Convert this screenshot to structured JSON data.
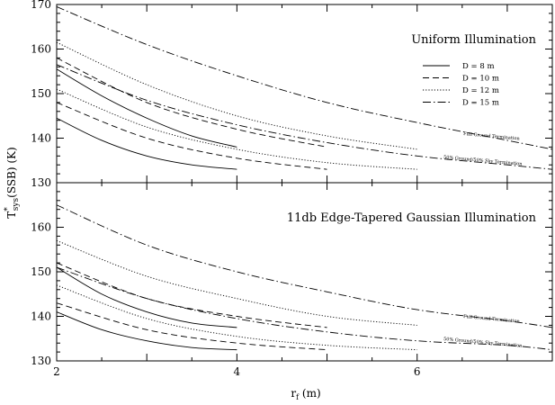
{
  "figure": {
    "ylabel_main": "T",
    "ylabel_sup": "*",
    "ylabel_sub": "sys",
    "ylabel_tail": "(SSB)  (K)",
    "xlabel_main": "r",
    "xlabel_sub": "f",
    "xlabel_tail": " (m)"
  },
  "chart_data": [
    {
      "type": "line",
      "panel": "top",
      "title": "Uniform Illumination",
      "xlim": [
        2,
        7.5
      ],
      "ylim": [
        130,
        170
      ],
      "xticks": [
        "2",
        "4",
        "6"
      ],
      "yticks": [
        "130",
        "140",
        "150",
        "160",
        "170"
      ],
      "legend": {
        "placement": "upper-right",
        "entries": [
          "D = 8 m",
          "D = 10 m",
          "D = 12 m",
          "D = 15 m"
        ]
      },
      "annotations": [
        "Full Ground Termination",
        "50% Ground/50% Sky Termination"
      ],
      "series": [
        {
          "name": "D = 8 m",
          "style": "solid",
          "termination": "full-ground",
          "x": [
            2.0,
            2.5,
            3.0,
            3.5,
            4.0
          ],
          "y": [
            155.5,
            149.5,
            144.5,
            140.5,
            138.0
          ]
        },
        {
          "name": "D = 8 m",
          "style": "solid",
          "termination": "50-50",
          "x": [
            2.0,
            2.5,
            3.0,
            3.5,
            4.0
          ],
          "y": [
            144.5,
            139.5,
            136.0,
            134.0,
            133.0
          ]
        },
        {
          "name": "D = 10 m",
          "style": "dashed",
          "termination": "full-ground",
          "x": [
            2.0,
            3.0,
            4.0,
            5.0
          ],
          "y": [
            158.0,
            148.0,
            142.0,
            138.0
          ]
        },
        {
          "name": "D = 10 m",
          "style": "dashed",
          "termination": "50-50",
          "x": [
            2.0,
            3.0,
            4.0,
            5.0
          ],
          "y": [
            148.0,
            140.0,
            135.5,
            133.0
          ]
        },
        {
          "name": "D = 12 m",
          "style": "dotted",
          "termination": "full-ground",
          "x": [
            2.0,
            3.0,
            4.0,
            5.0,
            6.0
          ],
          "y": [
            161.5,
            152.0,
            145.0,
            140.5,
            137.5
          ]
        },
        {
          "name": "D = 12 m",
          "style": "dotted",
          "termination": "50-50",
          "x": [
            2.0,
            3.0,
            4.0,
            5.0,
            6.0
          ],
          "y": [
            151.0,
            142.5,
            137.5,
            134.5,
            133.0
          ]
        },
        {
          "name": "D = 15 m",
          "style": "dashdot",
          "termination": "full-ground",
          "x": [
            2.0,
            3.0,
            4.0,
            5.0,
            6.0,
            7.0,
            7.5
          ],
          "y": [
            169.5,
            161.0,
            154.0,
            148.0,
            143.5,
            139.5,
            137.5
          ]
        },
        {
          "name": "D = 15 m",
          "style": "dashdot",
          "termination": "50-50",
          "x": [
            2.0,
            3.0,
            4.0,
            5.0,
            6.0,
            7.0,
            7.5
          ],
          "y": [
            156.5,
            148.5,
            143.0,
            139.0,
            136.0,
            134.0,
            133.0
          ]
        }
      ]
    },
    {
      "type": "line",
      "panel": "bottom",
      "title": "11db Edge-Tapered Gaussian Illumination",
      "xlim": [
        2,
        7.5
      ],
      "ylim": [
        130,
        170
      ],
      "xticks": [
        "2",
        "4",
        "6"
      ],
      "yticks": [
        "130",
        "140",
        "150",
        "160"
      ],
      "annotations": [
        "Full Ground Termination",
        "50% Ground/50% Sky Termination"
      ],
      "series": [
        {
          "name": "D = 8 m",
          "style": "solid",
          "termination": "full-ground",
          "x": [
            2.0,
            2.5,
            3.0,
            3.5,
            4.0
          ],
          "y": [
            151.0,
            145.0,
            141.0,
            138.5,
            137.5
          ]
        },
        {
          "name": "D = 8 m",
          "style": "solid",
          "termination": "50-50",
          "x": [
            2.0,
            2.5,
            3.0,
            3.5,
            4.0
          ],
          "y": [
            141.0,
            137.0,
            134.5,
            133.0,
            132.5
          ]
        },
        {
          "name": "D = 10 m",
          "style": "dashed",
          "termination": "full-ground",
          "x": [
            2.0,
            3.0,
            4.0,
            5.0
          ],
          "y": [
            152.0,
            144.0,
            140.0,
            137.5
          ]
        },
        {
          "name": "D = 10 m",
          "style": "dashed",
          "termination": "50-50",
          "x": [
            2.0,
            3.0,
            4.0,
            5.0
          ],
          "y": [
            143.0,
            137.0,
            134.0,
            132.5
          ]
        },
        {
          "name": "D = 12 m",
          "style": "dotted",
          "termination": "full-ground",
          "x": [
            2.0,
            3.0,
            4.0,
            5.0,
            6.0
          ],
          "y": [
            157.0,
            149.0,
            144.0,
            140.0,
            138.0
          ]
        },
        {
          "name": "D = 12 m",
          "style": "dotted",
          "termination": "50-50",
          "x": [
            2.0,
            3.0,
            4.0,
            5.0,
            6.0
          ],
          "y": [
            147.0,
            139.5,
            135.5,
            133.5,
            132.5
          ]
        },
        {
          "name": "D = 15 m",
          "style": "dashdot",
          "termination": "full-ground",
          "x": [
            2.0,
            3.0,
            4.0,
            5.0,
            6.0,
            7.0,
            7.5
          ],
          "y": [
            165.0,
            156.0,
            150.0,
            145.5,
            141.5,
            139.0,
            137.5
          ]
        },
        {
          "name": "D = 15 m",
          "style": "dashdot",
          "termination": "50-50",
          "x": [
            2.0,
            3.0,
            4.0,
            5.0,
            6.0,
            7.0,
            7.5
          ],
          "y": [
            151.0,
            144.0,
            139.5,
            136.5,
            134.5,
            133.5,
            132.5
          ]
        }
      ]
    }
  ]
}
